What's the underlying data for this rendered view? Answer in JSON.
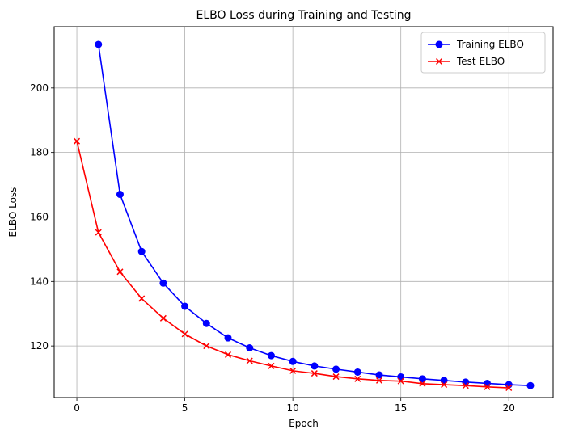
{
  "chart_data": {
    "type": "line",
    "title": "ELBO Loss during Training and Testing",
    "xlabel": "Epoch",
    "ylabel": "ELBO Loss",
    "xlim": [
      -1.05,
      22.05
    ],
    "ylim": [
      104,
      219
    ],
    "xticks": [
      0,
      5,
      10,
      15,
      20
    ],
    "yticks": [
      120,
      140,
      160,
      180,
      200
    ],
    "grid": true,
    "legend_position": "top-right",
    "series": [
      {
        "name": "Training ELBO",
        "color": "#0000ff",
        "marker": "circle",
        "x": [
          1,
          2,
          3,
          4,
          5,
          6,
          7,
          8,
          9,
          10,
          11,
          12,
          13,
          14,
          15,
          16,
          17,
          18,
          19,
          20,
          21
        ],
        "values": [
          213.5,
          167.0,
          149.3,
          139.5,
          132.3,
          127.0,
          122.5,
          119.4,
          117.0,
          115.2,
          113.8,
          112.8,
          111.9,
          111.0,
          110.4,
          109.8,
          109.3,
          108.8,
          108.4,
          108.0,
          107.7
        ]
      },
      {
        "name": "Test ELBO",
        "color": "#ff0000",
        "marker": "x",
        "x": [
          0,
          1,
          2,
          3,
          4,
          5,
          6,
          7,
          8,
          9,
          10,
          11,
          12,
          13,
          14,
          15,
          16,
          17,
          18,
          19,
          20
        ],
        "values": [
          183.5,
          155.2,
          143.0,
          134.7,
          128.6,
          123.7,
          120.0,
          117.3,
          115.4,
          113.8,
          112.3,
          111.5,
          110.5,
          109.8,
          109.3,
          109.1,
          108.3,
          108.0,
          107.7,
          107.3,
          107.0
        ]
      }
    ]
  }
}
